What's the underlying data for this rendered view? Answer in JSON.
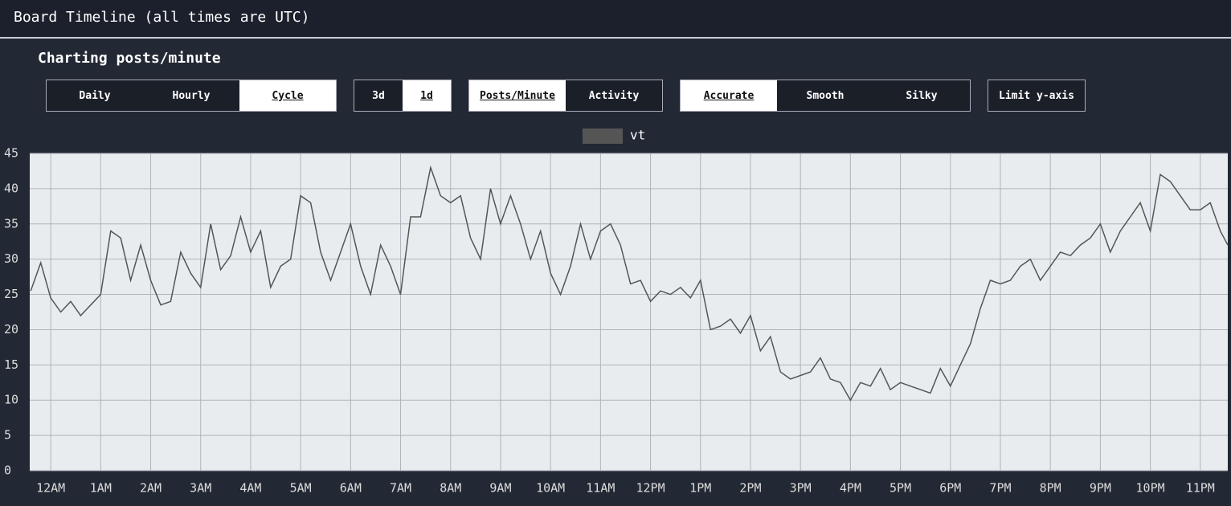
{
  "header": {
    "title": "Board Timeline (all times are UTC)"
  },
  "subtitle": "Charting posts/minute",
  "controls": [
    {
      "buttons": [
        {
          "label": "Daily",
          "selected": false
        },
        {
          "label": "Hourly",
          "selected": false
        },
        {
          "label": "Cycle",
          "selected": true
        }
      ]
    },
    {
      "buttons": [
        {
          "label": "3d",
          "selected": false
        },
        {
          "label": "1d",
          "selected": true
        }
      ]
    },
    {
      "buttons": [
        {
          "label": "Posts/Minute",
          "selected": true
        },
        {
          "label": "Activity",
          "selected": false
        }
      ]
    },
    {
      "buttons": [
        {
          "label": "Accurate",
          "selected": true
        },
        {
          "label": "Smooth",
          "selected": false
        },
        {
          "label": "Silky",
          "selected": false
        }
      ]
    },
    {
      "buttons": [
        {
          "label": "Limit y-axis",
          "selected": false
        }
      ]
    }
  ],
  "chart_data": {
    "type": "line",
    "x": [
      -0.4,
      -0.2,
      0,
      0.2,
      0.4,
      0.6,
      0.8,
      1,
      1.2,
      1.4,
      1.6,
      1.8,
      2,
      2.2,
      2.4,
      2.6,
      2.8,
      3,
      3.2,
      3.4,
      3.6,
      3.8,
      4,
      4.2,
      4.4,
      4.6,
      4.8,
      5,
      5.2,
      5.4,
      5.6,
      5.8,
      6,
      6.2,
      6.4,
      6.6,
      6.8,
      7,
      7.2,
      7.4,
      7.6,
      7.8,
      8,
      8.2,
      8.4,
      8.6,
      8.8,
      9,
      9.2,
      9.4,
      9.6,
      9.8,
      10,
      10.2,
      10.4,
      10.6,
      10.8,
      11,
      11.2,
      11.4,
      11.6,
      11.8,
      12,
      12.2,
      12.4,
      12.6,
      12.8,
      13,
      13.2,
      13.4,
      13.6,
      13.8,
      14,
      14.2,
      14.4,
      14.6,
      14.8,
      15,
      15.2,
      15.4,
      15.6,
      15.8,
      16,
      16.2,
      16.4,
      16.6,
      16.8,
      17,
      17.2,
      17.4,
      17.6,
      17.8,
      18,
      18.2,
      18.4,
      18.6,
      18.8,
      19,
      19.2,
      19.4,
      19.6,
      19.8,
      20,
      20.2,
      20.4,
      20.6,
      20.8,
      21,
      21.2,
      21.4,
      21.6,
      21.8,
      22,
      22.2,
      22.4,
      22.6,
      22.8,
      23,
      23.2,
      23.4,
      23.55
    ],
    "series": [
      {
        "name": "vt",
        "color": "#555555",
        "values": [
          25.5,
          29.5,
          24.5,
          22.5,
          24,
          22,
          23.5,
          25,
          34,
          33,
          27,
          32,
          27,
          23.5,
          24,
          31,
          28,
          26,
          35,
          28.5,
          30.5,
          36,
          31,
          34,
          26,
          29,
          30,
          39,
          38,
          31,
          27,
          31,
          35,
          29,
          25,
          32,
          29,
          25,
          36,
          36,
          43,
          39,
          38,
          39,
          33,
          30,
          40,
          35,
          39,
          35,
          30,
          34,
          28,
          25,
          29,
          35,
          30,
          34,
          35,
          32,
          26.5,
          27,
          24,
          25.5,
          25,
          26,
          24.5,
          27,
          20,
          20.5,
          21.5,
          19.5,
          22,
          17,
          19,
          14,
          13,
          13.5,
          14,
          16,
          13,
          12.5,
          10,
          12.5,
          12,
          14.5,
          11.5,
          12.5,
          12,
          11.5,
          11,
          14.5,
          12,
          15,
          18,
          23,
          27,
          26.5,
          27,
          29,
          30,
          27,
          29,
          31,
          30.5,
          32,
          33,
          35,
          31,
          34,
          36,
          38,
          34,
          42,
          41,
          39,
          37,
          37,
          38,
          34,
          32
        ]
      }
    ],
    "xlim": [
      -0.42,
      23.55
    ],
    "xticks": [
      {
        "value": 0,
        "label": "12AM"
      },
      {
        "value": 1,
        "label": "1AM"
      },
      {
        "value": 2,
        "label": "2AM"
      },
      {
        "value": 3,
        "label": "3AM"
      },
      {
        "value": 4,
        "label": "4AM"
      },
      {
        "value": 5,
        "label": "5AM"
      },
      {
        "value": 6,
        "label": "6AM"
      },
      {
        "value": 7,
        "label": "7AM"
      },
      {
        "value": 8,
        "label": "8AM"
      },
      {
        "value": 9,
        "label": "9AM"
      },
      {
        "value": 10,
        "label": "10AM"
      },
      {
        "value": 11,
        "label": "11AM"
      },
      {
        "value": 12,
        "label": "12PM"
      },
      {
        "value": 13,
        "label": "1PM"
      },
      {
        "value": 14,
        "label": "2PM"
      },
      {
        "value": 15,
        "label": "3PM"
      },
      {
        "value": 16,
        "label": "4PM"
      },
      {
        "value": 17,
        "label": "5PM"
      },
      {
        "value": 18,
        "label": "6PM"
      },
      {
        "value": 19,
        "label": "7PM"
      },
      {
        "value": 20,
        "label": "8PM"
      },
      {
        "value": 21,
        "label": "9PM"
      },
      {
        "value": 22,
        "label": "10PM"
      },
      {
        "value": 23,
        "label": "11PM"
      }
    ],
    "ylim": [
      0,
      45
    ],
    "yticks": [
      0,
      5,
      10,
      15,
      20,
      25,
      30,
      35,
      40,
      45
    ],
    "grid": true
  }
}
